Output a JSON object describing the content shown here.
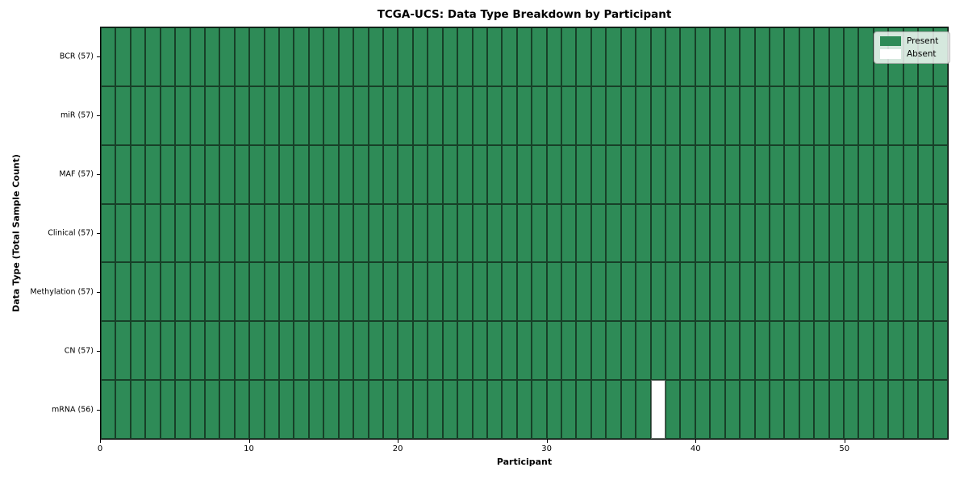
{
  "chart_data": {
    "type": "heatmap",
    "title": "TCGA-UCS: Data Type Breakdown by Participant",
    "xlabel": "Participant",
    "ylabel": "Data Type (Total Sample Count)",
    "x_range": [
      0,
      57
    ],
    "x_ticks": [
      0,
      10,
      20,
      30,
      40,
      50
    ],
    "n_participants": 57,
    "rows": [
      {
        "label": "BCR (57)",
        "data_type": "BCR",
        "total_samples": 57,
        "absent_participants": []
      },
      {
        "label": "miR (57)",
        "data_type": "miR",
        "total_samples": 57,
        "absent_participants": []
      },
      {
        "label": "MAF (57)",
        "data_type": "MAF",
        "total_samples": 57,
        "absent_participants": []
      },
      {
        "label": "Clinical (57)",
        "data_type": "Clinical",
        "total_samples": 57,
        "absent_participants": []
      },
      {
        "label": "Methylation (57)",
        "data_type": "Methylation",
        "total_samples": 57,
        "absent_participants": []
      },
      {
        "label": "CN (57)",
        "data_type": "CN",
        "total_samples": 57,
        "absent_participants": []
      },
      {
        "label": "mRNA (56)",
        "data_type": "mRNA",
        "total_samples": 56,
        "absent_participants": [
          37
        ]
      }
    ],
    "legend": [
      {
        "label": "Present",
        "color": "#2e8b57"
      },
      {
        "label": "Absent",
        "color": "#ffffff"
      }
    ],
    "legend_position": "upper right",
    "colors": {
      "present": "#2e8b57",
      "absent": "#ffffff",
      "cell_edge": "rgba(10,25,15,0.65)",
      "spine": "#000000"
    },
    "grid": true
  }
}
